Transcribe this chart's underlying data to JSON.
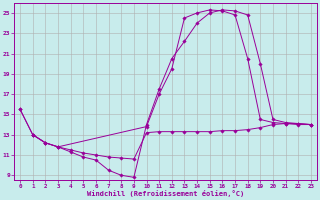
{
  "xlabel": "Windchill (Refroidissement éolien,°C)",
  "bg_color": "#c8ecec",
  "line_color": "#990099",
  "grid_color": "#b0b0b0",
  "xlim": [
    -0.5,
    23.5
  ],
  "ylim": [
    8.5,
    26.0
  ],
  "xticks": [
    0,
    1,
    2,
    3,
    4,
    5,
    6,
    7,
    8,
    9,
    10,
    11,
    12,
    13,
    14,
    15,
    16,
    17,
    18,
    19,
    20,
    21,
    22,
    23
  ],
  "yticks": [
    9,
    11,
    13,
    15,
    17,
    19,
    21,
    23,
    25
  ],
  "line1_x": [
    0,
    1,
    2,
    3,
    4,
    5,
    6,
    7,
    8,
    9,
    10,
    11,
    12,
    13,
    14,
    15,
    16,
    17,
    18,
    19,
    20,
    21,
    22,
    23
  ],
  "line1_y": [
    15.5,
    13.0,
    12.2,
    11.8,
    11.3,
    10.8,
    10.5,
    9.5,
    9.0,
    8.8,
    14.0,
    17.5,
    20.5,
    22.2,
    24.0,
    25.0,
    25.3,
    25.2,
    24.8,
    20.0,
    14.5,
    14.2,
    14.1,
    14.0
  ],
  "line2_x": [
    0,
    1,
    2,
    3,
    10,
    11,
    12,
    13,
    14,
    15,
    16,
    17,
    18,
    19,
    20,
    21,
    22,
    23
  ],
  "line2_y": [
    15.5,
    13.0,
    12.2,
    11.8,
    13.8,
    17.0,
    19.5,
    24.5,
    25.0,
    25.3,
    25.2,
    24.8,
    20.5,
    14.5,
    14.2,
    14.1,
    14.0,
    14.0
  ],
  "line3_x": [
    1,
    2,
    3,
    4,
    5,
    6,
    7,
    8,
    9,
    10,
    11,
    12,
    13,
    14,
    15,
    16,
    17,
    18,
    19,
    20,
    21,
    22,
    23
  ],
  "line3_y": [
    13.0,
    12.2,
    11.8,
    11.5,
    11.2,
    11.0,
    10.8,
    10.7,
    10.6,
    13.2,
    13.3,
    13.3,
    13.3,
    13.3,
    13.3,
    13.4,
    13.4,
    13.5,
    13.7,
    14.0,
    14.1,
    14.1,
    14.0
  ]
}
